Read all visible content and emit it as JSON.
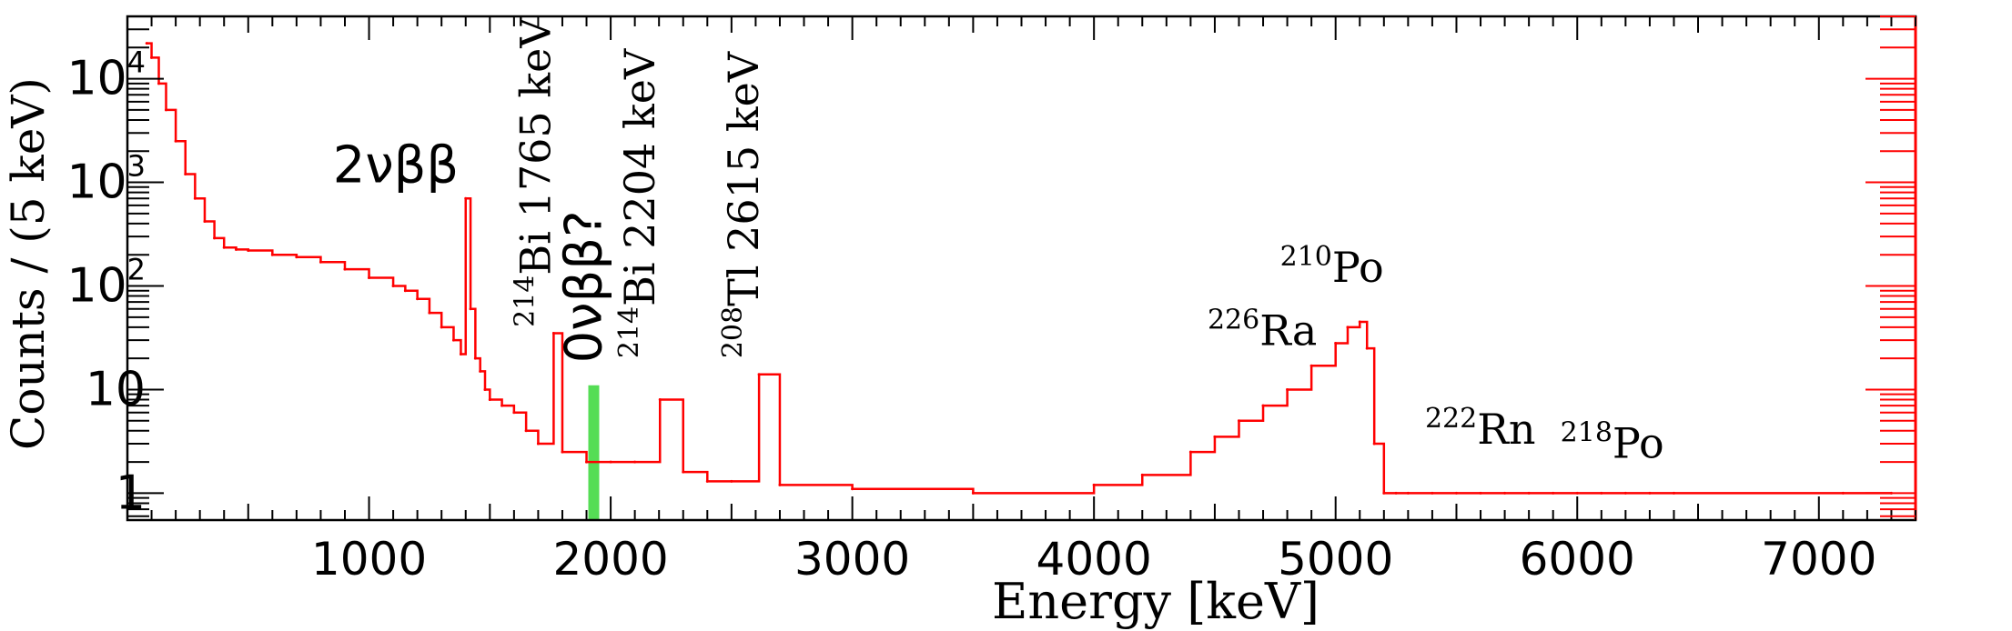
{
  "chart_data": {
    "type": "line",
    "title": "",
    "xlabel": "Energy [keV]",
    "ylabel": "Counts / (5 keV)",
    "xlim": [
      0,
      7400
    ],
    "ylim": [
      0.55,
      40000
    ],
    "yscale": "log",
    "grid": false,
    "colors": {
      "spectrum": "#ff0000",
      "roi": "#55dd55",
      "axis": "#000000",
      "right_axis": "#ff0000"
    },
    "x_ticks": [
      {
        "value": 1000,
        "label": "1000"
      },
      {
        "value": 2000,
        "label": "2000"
      },
      {
        "value": 3000,
        "label": "3000"
      },
      {
        "value": 4000,
        "label": "4000"
      },
      {
        "value": 5000,
        "label": "5000"
      },
      {
        "value": 6000,
        "label": "6000"
      },
      {
        "value": 7000,
        "label": "7000"
      }
    ],
    "y_ticks": [
      {
        "value": 1,
        "base": "1",
        "exp": ""
      },
      {
        "value": 10,
        "base": "10",
        "exp": ""
      },
      {
        "value": 100,
        "base": "10",
        "exp": "2"
      },
      {
        "value": 1000,
        "base": "10",
        "exp": "3"
      },
      {
        "value": 10000,
        "base": "10",
        "exp": "4"
      }
    ],
    "series": [
      {
        "x": [
          80,
          100,
          130,
          160,
          200,
          240,
          280,
          320,
          360,
          400,
          450,
          500,
          600,
          700,
          800,
          900,
          1000,
          1100,
          1150,
          1200,
          1250,
          1300,
          1350,
          1380,
          1400,
          1420,
          1440,
          1460,
          1480,
          1500,
          1550,
          1600,
          1650,
          1700,
          1764,
          1800,
          1900,
          2000,
          2100,
          2204,
          2300,
          2400,
          2500,
          2614,
          2700,
          3000,
          3500,
          4000,
          4200,
          4400,
          4500,
          4600,
          4700,
          4800,
          4900,
          5000,
          5050,
          5100,
          5130,
          5160,
          5200,
          5250,
          5300,
          5400,
          5500,
          5600,
          5700,
          5800,
          5900,
          6000,
          6100,
          6200,
          6300,
          6400,
          7100,
          7300
        ],
        "y": [
          22000,
          16000,
          9000,
          5000,
          2500,
          1200,
          700,
          420,
          290,
          235,
          225,
          220,
          200,
          190,
          170,
          145,
          120,
          100,
          90,
          75,
          55,
          40,
          30,
          22,
          700,
          60,
          20,
          15,
          10,
          8,
          7,
          6,
          4,
          3,
          35,
          2.5,
          2,
          2,
          2,
          8,
          1.6,
          1.3,
          1.3,
          14,
          1.2,
          1.1,
          1,
          1.2,
          1.5,
          2.5,
          3.5,
          5,
          7,
          10,
          17,
          28,
          40,
          45,
          25,
          3,
          1,
          1,
          1,
          1,
          1,
          1,
          1,
          1,
          1,
          1,
          1,
          1,
          1,
          1,
          1,
          1
        ]
      }
    ],
    "roi": {
      "x": 1930,
      "y_from": 0.55,
      "y_to": 11
    },
    "annotations": [
      {
        "id": "2nbb",
        "text": "2νββ",
        "sup": "",
        "x": 850,
        "y": 1000,
        "rotate": false
      },
      {
        "id": "bi1765",
        "text": "Bi 1765 keV",
        "sup": "214",
        "x": 1750,
        "y": 40,
        "rotate": true
      },
      {
        "id": "0nbb",
        "text": "0νββ?",
        "sup": "",
        "x": 1960,
        "y": 18,
        "rotate": true
      },
      {
        "id": "bi2204",
        "text": "Bi 2204 keV",
        "sup": "214",
        "x": 2180,
        "y": 20,
        "rotate": true
      },
      {
        "id": "tl2615",
        "text": "Tl 2615 keV",
        "sup": "208",
        "x": 2610,
        "y": 20,
        "rotate": true
      },
      {
        "id": "po210",
        "text": "Po",
        "sup": "210",
        "x": 4770,
        "y": 110,
        "rotate": false
      },
      {
        "id": "ra226",
        "text": "Ra",
        "sup": "226",
        "x": 4470,
        "y": 27,
        "rotate": false
      },
      {
        "id": "rn222",
        "text": "Rn",
        "sup": "222",
        "x": 5370,
        "y": 3,
        "rotate": false
      },
      {
        "id": "po218",
        "text": "Po",
        "sup": "218",
        "x": 5930,
        "y": 2.2,
        "rotate": false
      }
    ]
  }
}
